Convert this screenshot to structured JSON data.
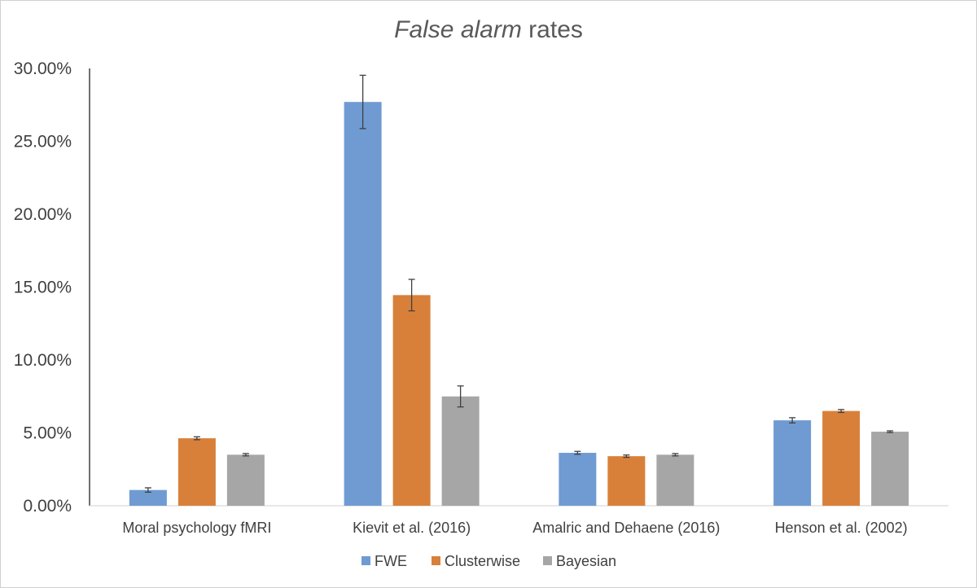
{
  "chart_data": {
    "type": "bar",
    "title_italic": "False alarm",
    "title_rest": " rates",
    "categories": [
      "Moral psychology fMRI",
      "Kievit et al. (2016)",
      "Amalric and Dehaene (2016)",
      "Henson et al. (2002)"
    ],
    "series": [
      {
        "name": "FWE",
        "color": "#6F9BD2",
        "values": [
          0.0108,
          0.277,
          0.0363,
          0.0586
        ],
        "errors": [
          0.0015,
          0.0183,
          0.001,
          0.0018
        ]
      },
      {
        "name": "Clusterwise",
        "color": "#D8803A",
        "values": [
          0.0463,
          0.1445,
          0.034,
          0.065
        ],
        "errors": [
          0.001,
          0.0108,
          0.0008,
          0.001
        ]
      },
      {
        "name": "Bayesian",
        "color": "#A6A6A6",
        "values": [
          0.035,
          0.075,
          0.035,
          0.0508
        ],
        "errors": [
          0.0008,
          0.0072,
          0.0008,
          0.0006
        ]
      }
    ],
    "ylim": [
      0,
      0.3
    ],
    "yticks": [
      0,
      0.05,
      0.1,
      0.15,
      0.2,
      0.25,
      0.3
    ],
    "ytick_labels": [
      "0.00%",
      "5.00%",
      "10.00%",
      "15.00%",
      "20.00%",
      "25.00%",
      "30.00%"
    ],
    "grid": false,
    "legend_position": "bottom"
  }
}
